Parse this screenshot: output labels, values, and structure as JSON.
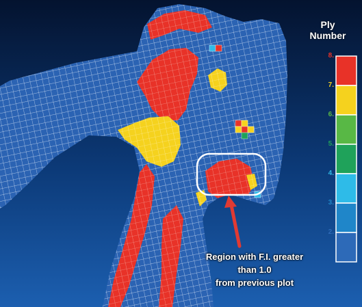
{
  "legend": {
    "title_line1": "Ply",
    "title_line2": "Number",
    "entries": [
      {
        "label": "8.",
        "color": "#e83228",
        "label_color": "#e83228"
      },
      {
        "label": "7.",
        "color": "#f5d21e",
        "label_color": "#f5d21e"
      },
      {
        "label": "6.",
        "color": "#58b845",
        "label_color": "#58b845"
      },
      {
        "label": "5.",
        "color": "#1fa25a",
        "label_color": "#1fa25a"
      },
      {
        "label": "4.",
        "color": "#2ebbe8",
        "label_color": "#2ebbe8"
      },
      {
        "label": "3.",
        "color": "#1f86c9",
        "label_color": "#1f86c9"
      },
      {
        "label": "2.",
        "color": "#2d6ab8",
        "label_color": "#2d6ab8"
      }
    ]
  },
  "annotation": {
    "text": "Region with F.I. greater\nthan 1.0\nfrom previous plot"
  },
  "colors": {
    "mesh_blue": "#2b63b3",
    "mesh_line": "#d4e1f3",
    "ply_red": "#e83228",
    "ply_yellow": "#f5d21e",
    "ply_green": "#1fa25a",
    "ply_cyan": "#2ebbe8",
    "arrow_red": "#e03a33",
    "highlight_ring": "#ffffff"
  }
}
